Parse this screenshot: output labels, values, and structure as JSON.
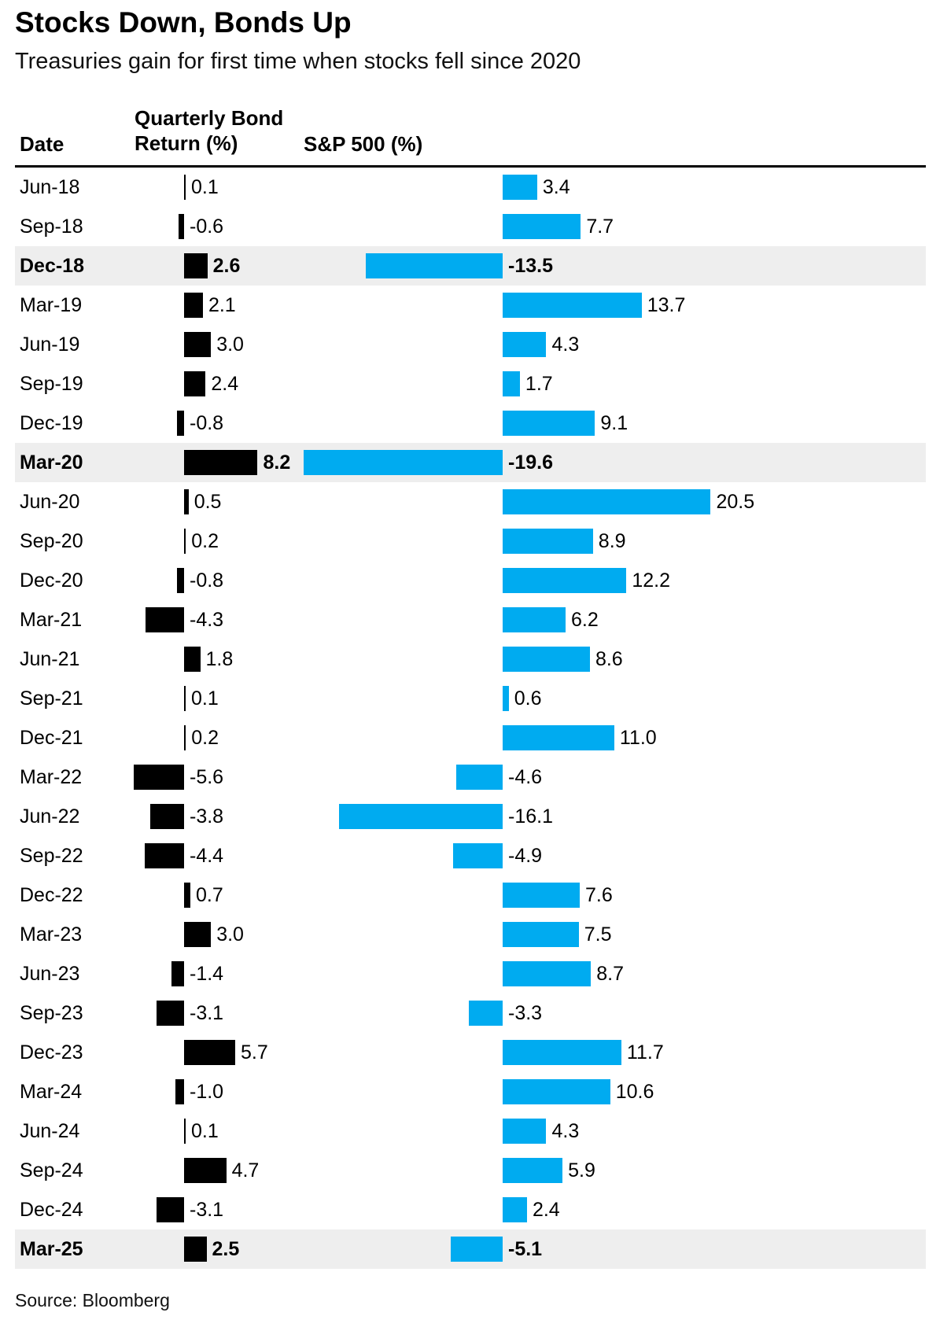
{
  "colors": {
    "bond_bar": "#000000",
    "sp500_bar": "#00abf0",
    "highlight_row": "#eeeeee",
    "rule": "#000000"
  },
  "chart_data": {
    "type": "bar",
    "orientation": "horizontal",
    "title": "Stocks Down, Bonds Up",
    "subtitle": "Treasuries gain for first time when stocks fell since 2020",
    "category_label": "Date",
    "categories": [
      "Jun-18",
      "Sep-18",
      "Dec-18",
      "Mar-19",
      "Jun-19",
      "Sep-19",
      "Dec-19",
      "Mar-20",
      "Jun-20",
      "Sep-20",
      "Dec-20",
      "Mar-21",
      "Jun-21",
      "Sep-21",
      "Dec-21",
      "Mar-22",
      "Jun-22",
      "Sep-22",
      "Dec-22",
      "Mar-23",
      "Jun-23",
      "Sep-23",
      "Dec-23",
      "Mar-24",
      "Jun-24",
      "Sep-24",
      "Dec-24",
      "Mar-25"
    ],
    "series": [
      {
        "name": "Quarterly Bond Return (%)",
        "values": [
          0.1,
          -0.6,
          2.6,
          2.1,
          3.0,
          2.4,
          -0.8,
          8.2,
          0.5,
          0.2,
          -0.8,
          -4.3,
          1.8,
          0.1,
          0.2,
          -5.6,
          -3.8,
          -4.4,
          0.7,
          3.0,
          -1.4,
          -3.1,
          5.7,
          -1.0,
          0.1,
          4.7,
          -3.1,
          2.5
        ]
      },
      {
        "name": "S&P 500 (%)",
        "values": [
          3.4,
          7.7,
          -13.5,
          13.7,
          4.3,
          1.7,
          9.1,
          -19.6,
          20.5,
          8.9,
          12.2,
          6.2,
          8.6,
          0.6,
          11.0,
          -4.6,
          -16.1,
          -4.9,
          7.6,
          7.5,
          8.7,
          -3.3,
          11.7,
          10.6,
          4.3,
          5.9,
          2.4,
          -5.1
        ]
      }
    ],
    "highlighted": [
      "Dec-18",
      "Mar-20",
      "Mar-25"
    ],
    "data_labels": true,
    "grid": false,
    "legend": "none",
    "source": "Source: Bloomberg"
  }
}
